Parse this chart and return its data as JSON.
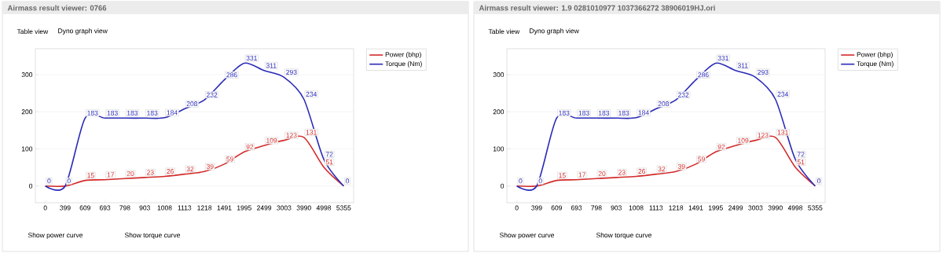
{
  "chart_data": [
    {
      "type": "line",
      "title": "Airmass result viewer: 0766",
      "categories": [
        "0",
        "399",
        "609",
        "693",
        "798",
        "903",
        "1008",
        "1113",
        "1218",
        "1491",
        "1995",
        "2499",
        "3003",
        "3990",
        "4998",
        "5355"
      ],
      "series": [
        {
          "name": "Power (bhp)",
          "color": "#d42a2a",
          "values": [
            0,
            0,
            15,
            17,
            20,
            23,
            26,
            32,
            39,
            59,
            92,
            109,
            123,
            131,
            51,
            0
          ],
          "value_labels": [
            null,
            null,
            "15",
            "17",
            "20",
            "23",
            "26",
            "32",
            "39",
            "59",
            "92",
            "109",
            "123",
            "131",
            "51",
            null
          ]
        },
        {
          "name": "Torque (Nm)",
          "color": "#2a2ab8",
          "values": [
            0,
            0,
            183,
            183,
            183,
            183,
            184,
            208,
            232,
            286,
            331,
            311,
            293,
            234,
            72,
            0
          ],
          "value_labels": [
            "0",
            "0",
            "183",
            "183",
            "183",
            "183",
            "184",
            "208",
            "232",
            "286",
            "331",
            "311",
            "293",
            "234",
            "72",
            "0"
          ]
        }
      ],
      "ylim": [
        -45,
        370
      ],
      "yticks": [
        0,
        100,
        200,
        300
      ],
      "grid": "y",
      "legend": "right",
      "annotations": [
        "Table view",
        "Dyno graph view",
        "Show power curve",
        "Show torque curve"
      ]
    },
    {
      "type": "line",
      "title": "Airmass result viewer: 1.9 0281010977 1037366272 38906019HJ.ori",
      "categories": [
        "0",
        "399",
        "609",
        "693",
        "798",
        "903",
        "1008",
        "1113",
        "1218",
        "1491",
        "1995",
        "2499",
        "3003",
        "3990",
        "4998",
        "5355"
      ],
      "series": [
        {
          "name": "Power (bhp)",
          "color": "#d42a2a",
          "values": [
            0,
            0,
            15,
            17,
            20,
            23,
            26,
            32,
            39,
            59,
            92,
            109,
            123,
            131,
            51,
            0
          ],
          "value_labels": [
            null,
            null,
            "15",
            "17",
            "20",
            "23",
            "26",
            "32",
            "39",
            "59",
            "92",
            "109",
            "123",
            "131",
            "51",
            null
          ]
        },
        {
          "name": "Torque (Nm)",
          "color": "#2a2ab8",
          "values": [
            0,
            0,
            183,
            183,
            183,
            183,
            184,
            208,
            232,
            286,
            331,
            311,
            293,
            234,
            72,
            0
          ],
          "value_labels": [
            "0",
            "0",
            "183",
            "183",
            "183",
            "183",
            "184",
            "208",
            "232",
            "286",
            "331",
            "311",
            "293",
            "234",
            "72",
            "0"
          ]
        }
      ],
      "ylim": [
        -45,
        370
      ],
      "yticks": [
        0,
        100,
        200,
        300
      ],
      "grid": "y",
      "legend": "right",
      "annotations": [
        "Table view",
        "Dyno graph view",
        "Show power curve",
        "Show torque curve"
      ]
    }
  ]
}
